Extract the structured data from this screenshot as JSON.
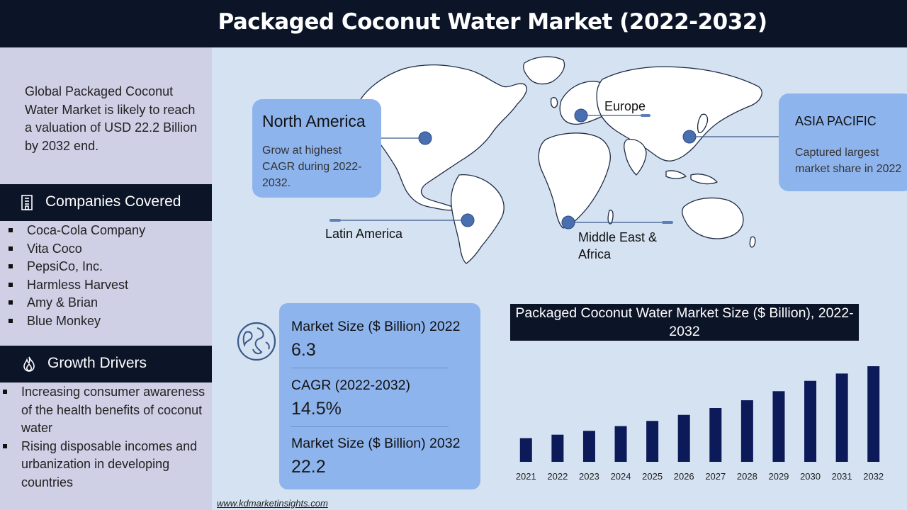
{
  "title": "Packaged Coconut Water Market (2022-2032)",
  "sidebar": {
    "intro": "Global Packaged Coconut Water Market  is likely to reach a valuation of USD 22.2 Billion by 2032 end.",
    "companies_heading": "Companies Covered",
    "companies_icon": "building-icon",
    "companies": [
      " Coca-Cola Company",
      "Vita Coco",
      "PepsiCo, Inc.",
      "Harmless Harvest",
      "Amy & Brian",
      "Blue Monkey"
    ],
    "drivers_heading": "Growth Drivers",
    "drivers_icon": "flame-icon",
    "drivers": [
      "Increasing consumer awareness of the health benefits of coconut water",
      "Rising disposable incomes and urbanization in developing countries"
    ]
  },
  "regions": {
    "north_america": {
      "title": "North America",
      "desc": "Grow at highest CAGR during 2022-2032."
    },
    "europe": {
      "label": "Europe"
    },
    "asia_pacific": {
      "title": "ASIA PACIFIC",
      "desc": "Captured largest market share in 2022"
    },
    "latin_america": {
      "label": "Latin America"
    },
    "mea": {
      "label": "Middle East & Africa"
    }
  },
  "kpis": [
    {
      "label": "Market Size ($ Billion) 2022",
      "value": "6.3"
    },
    {
      "label": "CAGR (2022-2032)",
      "value": "14.5%"
    },
    {
      "label": "Market Size ($ Billion) 2032",
      "value": "22.2"
    }
  ],
  "globe_icon": "globe-icon",
  "colors": {
    "dark": "#0c1428",
    "accent": "#8eb4ee",
    "bar": "#0c1a5a",
    "sidebar": "#cfcfe6",
    "map_bg": "#d4e2f1"
  },
  "chart_data": {
    "type": "bar",
    "title": "Packaged Coconut Water Market Size ($ Billion), 2022-2032",
    "categories": [
      "2021",
      "2022",
      "2023",
      "2024",
      "2025",
      "2026",
      "2027",
      "2028",
      "2029",
      "2030",
      "2031",
      "2032"
    ],
    "values": [
      5.5,
      6.3,
      7.2,
      8.3,
      9.5,
      10.9,
      12.5,
      14.3,
      16.4,
      18.8,
      20.5,
      22.2
    ],
    "ylim": [
      0,
      25
    ],
    "grid": false,
    "xlabel": "",
    "ylabel": ""
  },
  "footer": "www.kdmarketinsights.com"
}
